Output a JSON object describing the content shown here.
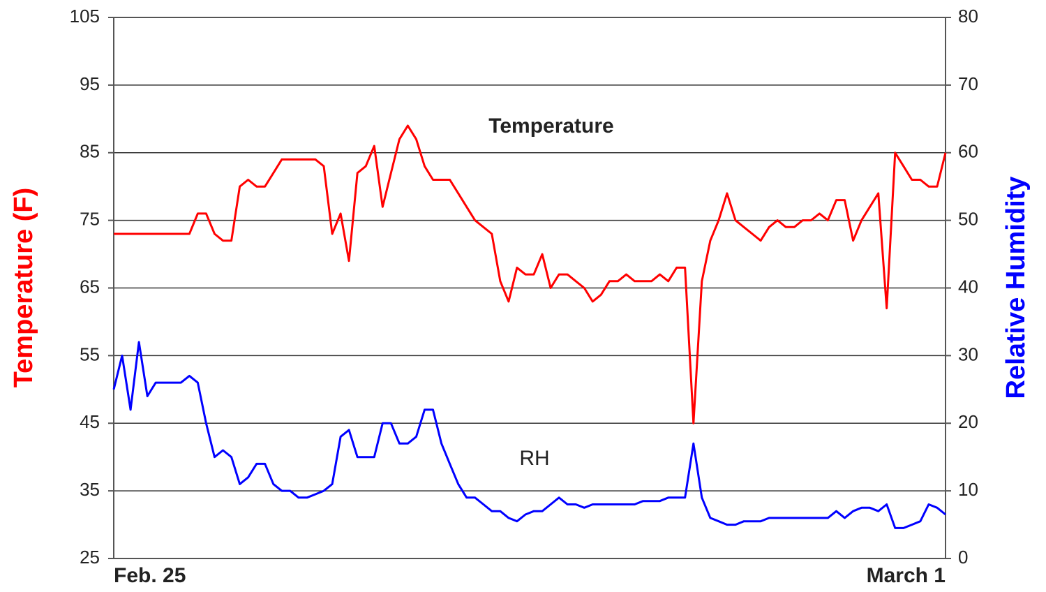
{
  "chart_data": {
    "type": "line",
    "annotations": [
      "Temperature",
      "RH"
    ],
    "ylabel": "Temperature (F)",
    "y2label": "Relative Humidity",
    "categories": [
      "Feb. 25",
      null,
      null,
      null,
      null,
      null,
      null,
      null,
      null,
      null,
      null,
      null,
      null,
      null,
      null,
      null,
      null,
      null,
      null,
      null,
      null,
      null,
      null,
      null,
      null,
      null,
      null,
      null,
      null,
      null,
      null,
      null,
      null,
      null,
      null,
      null,
      null,
      null,
      null,
      null,
      null,
      null,
      null,
      null,
      null,
      null,
      null,
      null,
      null,
      null,
      null,
      null,
      null,
      null,
      null,
      null,
      null,
      null,
      null,
      null,
      null,
      null,
      null,
      null,
      null,
      null,
      null,
      null,
      null,
      null,
      null,
      null,
      null,
      null,
      null,
      null,
      null,
      null,
      null,
      null,
      null,
      null,
      null,
      null,
      null,
      null,
      null,
      null,
      null,
      null,
      null,
      null,
      null,
      null,
      null,
      null,
      null,
      null,
      null,
      "March 1"
    ],
    "series": [
      {
        "name": "Temperature",
        "color": "#ff0000",
        "axis": "y",
        "values": [
          73,
          73,
          73,
          73,
          73,
          73,
          73,
          73,
          73,
          73,
          76,
          76,
          73,
          72,
          72,
          80,
          81,
          80,
          80,
          82,
          84,
          84,
          84,
          84,
          84,
          83,
          73,
          76,
          69,
          82,
          83,
          86,
          77,
          82,
          87,
          89,
          87,
          83,
          81,
          81,
          81,
          79,
          77,
          75,
          74,
          73,
          66,
          63,
          68,
          67,
          67,
          70,
          65,
          67,
          67,
          66,
          65,
          63,
          64,
          66,
          66,
          67,
          66,
          66,
          66,
          67,
          66,
          68,
          68,
          45,
          66,
          72,
          75,
          79,
          75,
          74,
          73,
          72,
          74,
          75,
          74,
          74,
          75,
          75,
          76,
          75,
          78,
          78,
          72,
          75,
          77,
          79,
          62,
          85,
          83,
          81,
          81,
          80,
          80,
          85
        ]
      },
      {
        "name": "RH",
        "color": "#0000ff",
        "axis": "y2",
        "values": [
          25,
          30,
          22,
          32,
          24,
          26,
          26,
          26,
          26,
          27,
          26,
          20,
          15,
          16,
          15,
          11,
          12,
          14,
          14,
          11,
          10,
          10,
          9,
          9,
          9.5,
          10,
          11,
          18,
          19,
          15,
          15,
          15,
          20,
          20,
          17,
          17,
          18,
          22,
          22,
          17,
          14,
          11,
          9,
          9,
          8,
          7,
          7,
          6,
          5.5,
          6.5,
          7,
          7,
          8,
          9,
          8,
          8,
          7.5,
          8,
          8,
          8,
          8,
          8,
          8,
          8.5,
          8.5,
          8.5,
          9,
          9,
          9,
          17,
          9,
          6,
          5.5,
          5,
          5,
          5.5,
          5.5,
          5.5,
          6,
          6,
          6,
          6,
          6,
          6,
          6,
          6,
          7,
          6,
          7,
          7.5,
          7.5,
          7,
          8,
          4.5,
          4.5,
          5,
          5.5,
          8,
          7.5,
          6.5
        ]
      }
    ],
    "ylim": [
      25,
      105
    ],
    "yticks": [
      25,
      35,
      45,
      55,
      65,
      75,
      85,
      95,
      105
    ],
    "y2lim": [
      0,
      80
    ],
    "y2ticks": [
      0,
      10,
      20,
      30,
      40,
      50,
      60,
      70,
      80
    ],
    "grid": true
  }
}
